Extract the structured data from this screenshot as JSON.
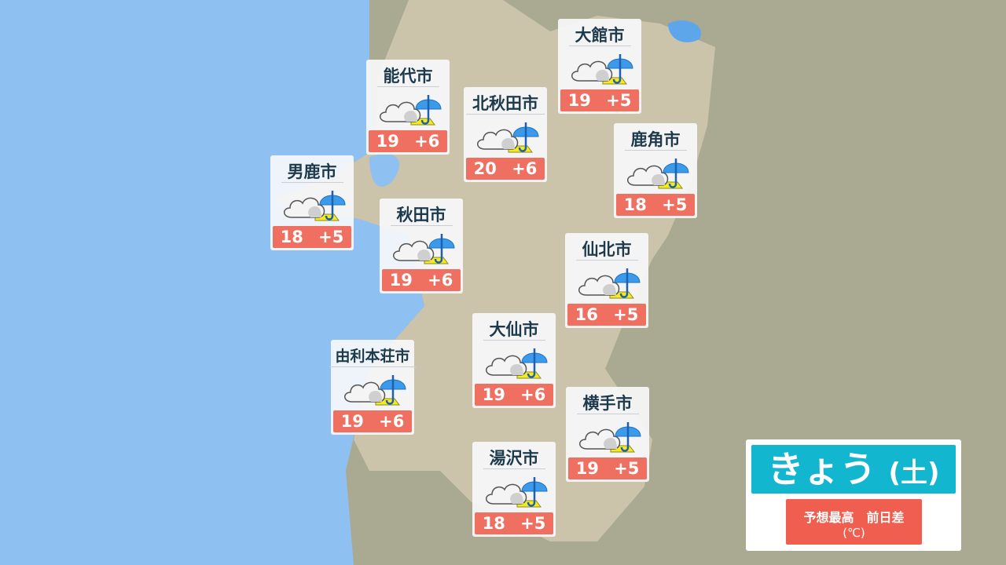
{
  "title": {
    "day": "きょう",
    "weekday": "(土)"
  },
  "legend": {
    "label": "予想最高　前日差",
    "unit": "(℃)"
  },
  "colors": {
    "sea": "#8ec0f2",
    "land": "#cbc4aa",
    "neighbor_land": "#aaa992",
    "temp_box": "#ef6f61",
    "title_bg": "#12b6cf"
  },
  "cities": [
    {
      "name": "能代市",
      "weather_icon": "cloudy-then-rain",
      "high": "19",
      "diff": "+6"
    },
    {
      "name": "大館市",
      "weather_icon": "cloudy-then-rain",
      "high": "19",
      "diff": "+5"
    },
    {
      "name": "北秋田市",
      "weather_icon": "cloudy-then-rain",
      "high": "20",
      "diff": "+6"
    },
    {
      "name": "鹿角市",
      "weather_icon": "cloudy-then-rain",
      "high": "18",
      "diff": "+5"
    },
    {
      "name": "男鹿市",
      "weather_icon": "cloudy-then-rain",
      "high": "18",
      "diff": "+5"
    },
    {
      "name": "秋田市",
      "weather_icon": "cloudy-then-rain",
      "high": "19",
      "diff": "+6"
    },
    {
      "name": "仙北市",
      "weather_icon": "cloudy-then-rain",
      "high": "16",
      "diff": "+5"
    },
    {
      "name": "大仙市",
      "weather_icon": "cloudy-then-rain",
      "high": "19",
      "diff": "+6"
    },
    {
      "name": "由利本荘市",
      "weather_icon": "cloudy-then-rain",
      "high": "19",
      "diff": "+6"
    },
    {
      "name": "横手市",
      "weather_icon": "cloudy-then-rain",
      "high": "19",
      "diff": "+5"
    },
    {
      "name": "湯沢市",
      "weather_icon": "cloudy-then-rain",
      "high": "18",
      "diff": "+5"
    }
  ]
}
